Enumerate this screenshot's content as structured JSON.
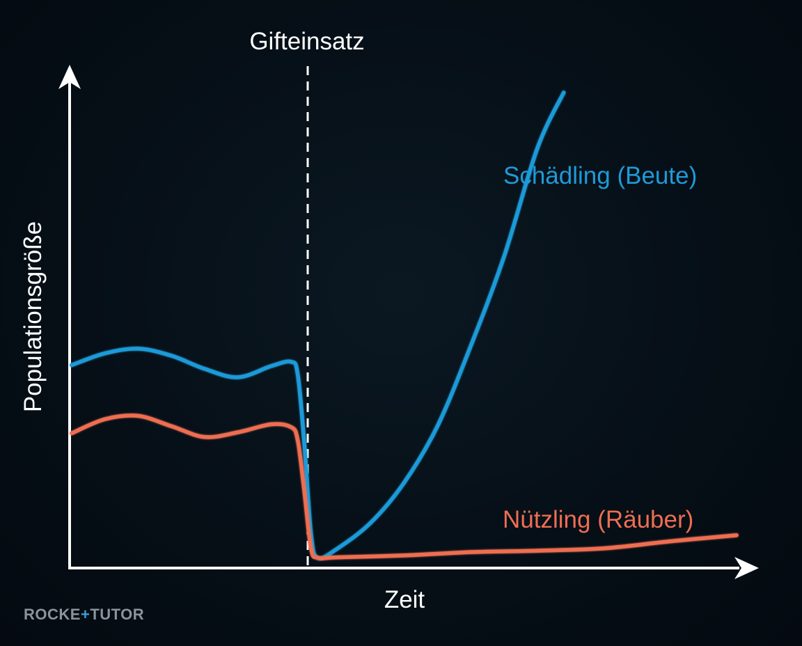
{
  "chart_data": {
    "type": "line",
    "title": "",
    "xlabel": "Zeit",
    "ylabel": "Populationsgröße",
    "annotation": "Gifteinsatz",
    "xlim": [
      0,
      100
    ],
    "ylim": [
      0,
      100
    ],
    "event_x": 35.5,
    "grid": false,
    "series": [
      {
        "name": "Schädling (Beute)",
        "color": "#1f9ad8",
        "x": [
          0,
          5,
          10,
          15,
          20,
          25,
          30,
          33,
          34,
          35,
          36,
          37,
          40,
          45,
          50,
          55,
          60,
          65,
          70,
          74
        ],
        "y": [
          42,
          44.5,
          45.5,
          44,
          41.2,
          39.4,
          41.8,
          42.7,
          40,
          25,
          6,
          1,
          3,
          8.5,
          17,
          29,
          46,
          65,
          88,
          100
        ]
      },
      {
        "name": "Nützling (Räuber)",
        "color": "#ee6e51",
        "x": [
          0,
          5,
          10,
          15,
          20,
          25,
          30,
          33,
          34,
          35,
          36,
          37,
          40,
          50,
          60,
          70,
          80,
          90,
          100
        ],
        "y": [
          27.5,
          30.5,
          31.2,
          29,
          26.7,
          27.7,
          29.4,
          28.8,
          26,
          15,
          3,
          1,
          1.1,
          1.5,
          2.2,
          2.5,
          3,
          4.5,
          5.8
        ]
      }
    ]
  },
  "logo": {
    "part1": "ROCKE",
    "plus": "+",
    "part2": "TUTOR"
  }
}
